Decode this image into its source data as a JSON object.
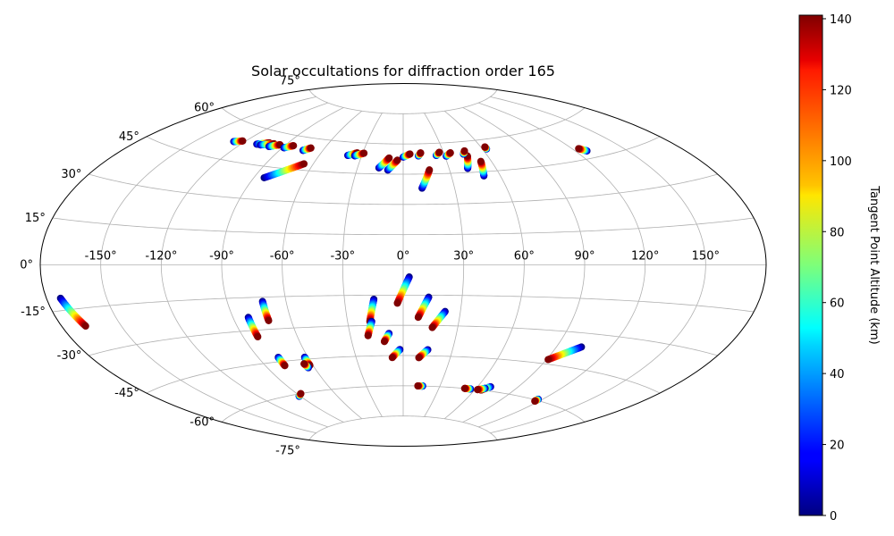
{
  "chart_data": {
    "type": "scatter",
    "projection": "aitoff",
    "title": "Solar occultations for diffraction order 165",
    "lon_ticks": [
      "-150°",
      "-120°",
      "-90°",
      "-60°",
      "-30°",
      "0°",
      "30°",
      "60°",
      "90°",
      "120°",
      "150°"
    ],
    "lon_tick_values": [
      -150,
      -120,
      -90,
      -60,
      -30,
      0,
      30,
      60,
      90,
      120,
      150
    ],
    "lat_ticks": [
      "75°",
      "60°",
      "45°",
      "30°",
      "15°",
      "0°",
      "-15°",
      "-30°",
      "-45°",
      "-60°",
      "-75°"
    ],
    "lat_tick_values": [
      75,
      60,
      45,
      30,
      15,
      0,
      -15,
      -30,
      -45,
      -60,
      -75
    ],
    "grid": true,
    "colorbar": {
      "label": "Tangent Point Altitude (km)",
      "min": 0,
      "max": 141,
      "colormap": "jet",
      "ticks": [
        "0",
        "20",
        "40",
        "60",
        "80",
        "100",
        "120",
        "140"
      ],
      "tick_values": [
        0,
        20,
        40,
        60,
        80,
        100,
        120,
        140
      ]
    },
    "tracks": [
      {
        "lon_start": -127,
        "lat_start": 52.5,
        "lon_end": -122,
        "lat_end": 53.5
      },
      {
        "lon_start": -110,
        "lat_start": 53.5,
        "lon_end": -103,
        "lat_end": 55
      },
      {
        "lon_start": -107,
        "lat_start": 53.5,
        "lon_end": -99,
        "lat_end": 55
      },
      {
        "lon_start": -100,
        "lat_start": 53.5,
        "lon_end": -94,
        "lat_end": 55
      },
      {
        "lon_start": -89,
        "lat_start": 54,
        "lon_end": -84,
        "lat_end": 55.5
      },
      {
        "lon_start": -84,
        "lat_start": 40,
        "lon_end": -66,
        "lat_end": 48
      },
      {
        "lon_start": -74,
        "lat_start": 54,
        "lon_end": -70,
        "lat_end": 55.5
      },
      {
        "lon_start": -40,
        "lat_start": 53.5,
        "lon_end": -34,
        "lat_end": 55
      },
      {
        "lon_start": -35,
        "lat_start": 53.5,
        "lon_end": -29,
        "lat_end": 55
      },
      {
        "lon_start": -16,
        "lat_start": 48,
        "lon_end": -10,
        "lat_end": 53
      },
      {
        "lon_start": -10,
        "lat_start": 47,
        "lon_end": -4,
        "lat_end": 52
      },
      {
        "lon_start": 0,
        "lat_start": 53.5,
        "lon_end": 5,
        "lat_end": 55
      },
      {
        "lon_start": 11,
        "lat_start": 54,
        "lon_end": 13,
        "lat_end": 55.5
      },
      {
        "lon_start": 11,
        "lat_start": 38,
        "lon_end": 17,
        "lat_end": 47
      },
      {
        "lon_start": 24,
        "lat_start": 54,
        "lon_end": 27,
        "lat_end": 55.5
      },
      {
        "lon_start": 31,
        "lat_start": 53.5,
        "lon_end": 35,
        "lat_end": 55
      },
      {
        "lon_start": 42,
        "lat_start": 47,
        "lon_end": 46,
        "lat_end": 53
      },
      {
        "lon_start": 44,
        "lat_start": 54,
        "lon_end": 46,
        "lat_end": 55.5
      },
      {
        "lon_start": 50,
        "lat_start": 43,
        "lon_end": 53,
        "lat_end": 50
      },
      {
        "lon_start": 63,
        "lat_start": 55.5,
        "lon_end": 63,
        "lat_end": 56.5
      },
      {
        "lon_start": 127,
        "lat_start": 48,
        "lon_end": 124,
        "lat_end": 49.5
      },
      {
        "lon_start": -173,
        "lat_start": -11,
        "lon_end": -168,
        "lat_end": -21
      },
      {
        "lon_start": -82,
        "lat_start": -24,
        "lon_end": -82,
        "lat_end": -33
      },
      {
        "lon_start": -72,
        "lat_start": -17,
        "lon_end": -72,
        "lat_end": -26
      },
      {
        "lon_start": -78,
        "lat_start": -43,
        "lon_end": -78,
        "lat_end": -47
      },
      {
        "lon_start": -62,
        "lat_start": -44,
        "lon_end": -62,
        "lat_end": -48
      },
      {
        "lon_start": -64,
        "lat_start": -49,
        "lon_end": -65,
        "lat_end": -47
      },
      {
        "lon_start": -91,
        "lat_start": -61,
        "lon_end": -87,
        "lat_end": -60
      },
      {
        "lon_start": -15,
        "lat_start": -17,
        "lon_end": -18,
        "lat_end": -28
      },
      {
        "lon_start": 3,
        "lat_start": -6,
        "lon_end": -3,
        "lat_end": -19
      },
      {
        "lon_start": 13,
        "lat_start": -16,
        "lon_end": 8,
        "lat_end": -26
      },
      {
        "lon_start": 22,
        "lat_start": -23,
        "lon_end": 16,
        "lat_end": -31
      },
      {
        "lon_start": -17,
        "lat_start": -28,
        "lon_end": -20,
        "lat_end": -35
      },
      {
        "lon_start": -8,
        "lat_start": -34,
        "lon_end": -11,
        "lat_end": -38
      },
      {
        "lon_start": -2,
        "lat_start": -42,
        "lon_end": -7,
        "lat_end": -46
      },
      {
        "lon_start": 15,
        "lat_start": -42,
        "lon_end": 10,
        "lat_end": -46
      },
      {
        "lon_start": 16,
        "lat_start": -60,
        "lon_end": 12,
        "lat_end": -60
      },
      {
        "lon_start": 56,
        "lat_start": -60,
        "lon_end": 51,
        "lat_end": -60
      },
      {
        "lon_start": 70,
        "lat_start": -58,
        "lon_end": 65,
        "lat_end": -60
      },
      {
        "lon_start": 67,
        "lat_start": -59,
        "lon_end": 62,
        "lat_end": -60
      },
      {
        "lon_start": 104,
        "lat_start": -36,
        "lon_end": 91,
        "lat_end": -43
      },
      {
        "lon_start": 117,
        "lat_start": -59.5,
        "lon_end": 117,
        "lat_end": -60.5
      }
    ]
  }
}
